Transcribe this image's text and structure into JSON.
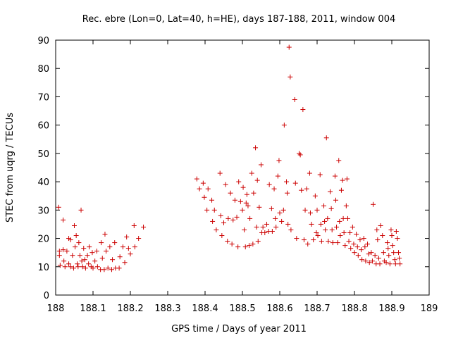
{
  "chart_data": {
    "type": "scatter",
    "title": "Rec. ebre (Lon=0, Lat=40, h=HE), days 187-188, 2011, window 004",
    "xlabel": "GPS time / Days of year 2011",
    "ylabel": "STEC from uqrg / TECUs",
    "xlim": [
      188,
      189
    ],
    "ylim": [
      0,
      90
    ],
    "x_ticks": [
      "188",
      "188.1",
      "188.2",
      "188.3",
      "188.4",
      "188.5",
      "188.6",
      "188.7",
      "188.8",
      "188.9",
      "189"
    ],
    "x_tick_values": [
      188,
      188.1,
      188.2,
      188.3,
      188.4,
      188.5,
      188.6,
      188.7,
      188.8,
      188.9,
      189
    ],
    "y_ticks": [
      "0",
      "10",
      "20",
      "30",
      "40",
      "50",
      "60",
      "70",
      "80",
      "90"
    ],
    "y_tick_values": [
      0,
      10,
      20,
      30,
      40,
      50,
      60,
      70,
      80,
      90
    ],
    "marker": "+",
    "color": "#cc0000",
    "series": [
      {
        "name": "STEC",
        "points": [
          [
            188.008,
            31
          ],
          [
            188.01,
            15.5
          ],
          [
            188.01,
            14
          ],
          [
            188.012,
            10.5
          ],
          [
            188.02,
            26.5
          ],
          [
            188.02,
            16
          ],
          [
            188.022,
            12
          ],
          [
            188.025,
            10
          ],
          [
            188.03,
            15.5
          ],
          [
            188.035,
            20
          ],
          [
            188.035,
            11
          ],
          [
            188.04,
            19.5
          ],
          [
            188.04,
            10
          ],
          [
            188.045,
            14
          ],
          [
            188.048,
            9.5
          ],
          [
            188.05,
            24.5
          ],
          [
            188.052,
            17
          ],
          [
            188.055,
            21
          ],
          [
            188.058,
            11
          ],
          [
            188.06,
            10
          ],
          [
            188.062,
            18.5
          ],
          [
            188.065,
            14
          ],
          [
            188.068,
            30
          ],
          [
            188.07,
            12
          ],
          [
            188.072,
            10
          ],
          [
            188.075,
            16.5
          ],
          [
            188.078,
            12.5
          ],
          [
            188.08,
            9.5
          ],
          [
            188.085,
            14
          ],
          [
            188.088,
            11
          ],
          [
            188.09,
            17
          ],
          [
            188.095,
            10
          ],
          [
            188.098,
            15
          ],
          [
            188.1,
            9.5
          ],
          [
            188.105,
            12
          ],
          [
            188.11,
            15.5
          ],
          [
            188.112,
            10
          ],
          [
            188.12,
            9
          ],
          [
            188.122,
            18.5
          ],
          [
            188.125,
            13
          ],
          [
            188.13,
            9
          ],
          [
            188.132,
            21.5
          ],
          [
            188.135,
            15.5
          ],
          [
            188.14,
            9.5
          ],
          [
            188.145,
            17
          ],
          [
            188.15,
            9
          ],
          [
            188.152,
            12.5
          ],
          [
            188.158,
            18.5
          ],
          [
            188.16,
            9.5
          ],
          [
            188.17,
            9.5
          ],
          [
            188.172,
            13.5
          ],
          [
            188.18,
            17
          ],
          [
            188.185,
            11.5
          ],
          [
            188.19,
            20.5
          ],
          [
            188.195,
            16.5
          ],
          [
            188.2,
            14.5
          ],
          [
            188.21,
            24.5
          ],
          [
            188.212,
            17
          ],
          [
            188.222,
            20
          ],
          [
            188.235,
            24
          ],
          [
            188.378,
            41
          ],
          [
            188.385,
            37.5
          ],
          [
            188.395,
            39.5
          ],
          [
            188.398,
            34.5
          ],
          [
            188.405,
            30
          ],
          [
            188.408,
            37.5
          ],
          [
            188.418,
            33.5
          ],
          [
            188.42,
            26
          ],
          [
            188.425,
            30
          ],
          [
            188.43,
            23
          ],
          [
            188.44,
            43
          ],
          [
            188.442,
            28
          ],
          [
            188.445,
            21
          ],
          [
            188.45,
            25.5
          ],
          [
            188.455,
            39
          ],
          [
            188.46,
            19
          ],
          [
            188.462,
            27
          ],
          [
            188.468,
            36
          ],
          [
            188.472,
            18
          ],
          [
            188.475,
            26.5
          ],
          [
            188.48,
            33.5
          ],
          [
            188.485,
            27.5
          ],
          [
            188.488,
            17
          ],
          [
            188.49,
            40
          ],
          [
            188.495,
            33
          ],
          [
            188.5,
            30
          ],
          [
            188.502,
            38
          ],
          [
            188.505,
            23
          ],
          [
            188.508,
            17
          ],
          [
            188.51,
            32.5
          ],
          [
            188.512,
            35.5
          ],
          [
            188.515,
            31.5
          ],
          [
            188.518,
            17.5
          ],
          [
            188.52,
            27
          ],
          [
            188.525,
            43
          ],
          [
            188.528,
            18
          ],
          [
            188.53,
            36
          ],
          [
            188.535,
            52
          ],
          [
            188.538,
            24
          ],
          [
            188.54,
            40.5
          ],
          [
            188.542,
            19
          ],
          [
            188.545,
            31
          ],
          [
            188.55,
            46
          ],
          [
            188.552,
            22
          ],
          [
            188.555,
            24
          ],
          [
            188.56,
            22
          ],
          [
            188.565,
            25
          ],
          [
            188.57,
            22.5
          ],
          [
            188.572,
            39
          ],
          [
            188.578,
            30.5
          ],
          [
            188.58,
            22.5
          ],
          [
            188.585,
            37.5
          ],
          [
            188.588,
            27
          ],
          [
            188.59,
            24
          ],
          [
            188.595,
            42
          ],
          [
            188.598,
            47.5
          ],
          [
            188.6,
            29
          ],
          [
            188.605,
            26
          ],
          [
            188.61,
            30
          ],
          [
            188.612,
            60
          ],
          [
            188.618,
            40
          ],
          [
            188.62,
            36
          ],
          [
            188.622,
            25
          ],
          [
            188.625,
            87.5
          ],
          [
            188.628,
            77
          ],
          [
            188.63,
            23
          ],
          [
            188.64,
            69
          ],
          [
            188.642,
            39.5
          ],
          [
            188.645,
            20
          ],
          [
            188.652,
            50
          ],
          [
            188.655,
            49.5
          ],
          [
            188.658,
            37
          ],
          [
            188.662,
            65.5
          ],
          [
            188.665,
            19.5
          ],
          [
            188.668,
            30
          ],
          [
            188.672,
            37.5
          ],
          [
            188.675,
            18
          ],
          [
            188.68,
            43
          ],
          [
            188.682,
            29
          ],
          [
            188.685,
            25
          ],
          [
            188.69,
            19.5
          ],
          [
            188.695,
            35
          ],
          [
            188.698,
            22
          ],
          [
            188.7,
            30
          ],
          [
            188.702,
            21
          ],
          [
            188.708,
            42.5
          ],
          [
            188.71,
            25
          ],
          [
            188.712,
            19
          ],
          [
            188.718,
            31.5
          ],
          [
            188.72,
            26
          ],
          [
            188.722,
            23
          ],
          [
            188.725,
            55.5
          ],
          [
            188.728,
            27
          ],
          [
            188.73,
            19
          ],
          [
            188.735,
            36.5
          ],
          [
            188.738,
            30.5
          ],
          [
            188.74,
            23
          ],
          [
            188.742,
            18.5
          ],
          [
            188.748,
            42
          ],
          [
            188.75,
            33.5
          ],
          [
            188.752,
            24
          ],
          [
            188.755,
            18.5
          ],
          [
            188.758,
            47.5
          ],
          [
            188.76,
            26
          ],
          [
            188.762,
            21
          ],
          [
            188.765,
            37
          ],
          [
            188.768,
            40.5
          ],
          [
            188.77,
            27
          ],
          [
            188.772,
            22
          ],
          [
            188.775,
            17.5
          ],
          [
            188.778,
            31.5
          ],
          [
            188.78,
            41
          ],
          [
            188.782,
            27
          ],
          [
            188.785,
            19
          ],
          [
            188.788,
            22
          ],
          [
            188.79,
            16.5
          ],
          [
            188.795,
            24
          ],
          [
            188.798,
            18
          ],
          [
            188.8,
            15
          ],
          [
            188.805,
            21.5
          ],
          [
            188.808,
            17
          ],
          [
            188.81,
            14
          ],
          [
            188.815,
            19.5
          ],
          [
            188.818,
            16
          ],
          [
            188.82,
            12.5
          ],
          [
            188.825,
            20
          ],
          [
            188.828,
            17
          ],
          [
            188.83,
            12
          ],
          [
            188.835,
            18
          ],
          [
            188.838,
            14.5
          ],
          [
            188.84,
            11.5
          ],
          [
            188.845,
            15
          ],
          [
            188.848,
            12
          ],
          [
            188.85,
            32
          ],
          [
            188.855,
            14
          ],
          [
            188.858,
            11
          ],
          [
            188.86,
            23
          ],
          [
            188.862,
            19.5
          ],
          [
            188.865,
            13
          ],
          [
            188.868,
            11
          ],
          [
            188.87,
            24.5
          ],
          [
            188.875,
            21
          ],
          [
            188.878,
            15
          ],
          [
            188.88,
            12
          ],
          [
            188.885,
            11.5
          ],
          [
            188.888,
            18.5
          ],
          [
            188.89,
            16.5
          ],
          [
            188.892,
            14
          ],
          [
            188.895,
            11
          ],
          [
            188.898,
            23
          ],
          [
            188.9,
            21
          ],
          [
            188.902,
            17.5
          ],
          [
            188.905,
            15
          ],
          [
            188.908,
            12.5
          ],
          [
            188.91,
            11
          ],
          [
            188.912,
            22.5
          ],
          [
            188.915,
            20
          ],
          [
            188.918,
            15
          ],
          [
            188.92,
            13
          ],
          [
            188.922,
            11
          ]
        ]
      }
    ]
  }
}
